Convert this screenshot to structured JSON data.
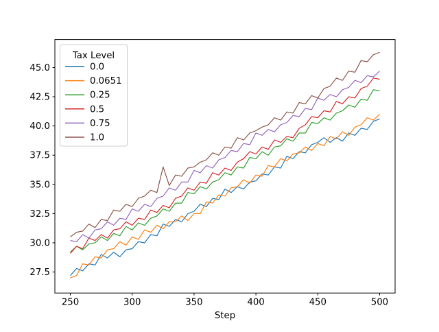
{
  "figure": {
    "background": "#ffffff"
  },
  "chart_data": {
    "type": "line",
    "title": "",
    "xlabel": "Step",
    "ylabel": "",
    "xlim": [
      237.5,
      512.5
    ],
    "ylim": [
      25.7,
      47.4
    ],
    "grid": false,
    "x_ticks": {
      "values": [
        250,
        300,
        350,
        400,
        450,
        500
      ],
      "labels": [
        "250",
        "300",
        "350",
        "400",
        "450",
        "500"
      ]
    },
    "y_ticks": {
      "values": [
        27.5,
        30.0,
        32.5,
        35.0,
        37.5,
        40.0,
        42.5,
        45.0
      ],
      "labels": [
        "27.5",
        "30.0",
        "32.5",
        "35.0",
        "37.5",
        "40.0",
        "42.5",
        "45.0"
      ]
    },
    "legend": {
      "title": "Tax Level",
      "position": "upper-left"
    },
    "x": [
      250,
      255,
      260,
      265,
      270,
      275,
      280,
      285,
      290,
      295,
      300,
      305,
      310,
      315,
      320,
      325,
      330,
      335,
      340,
      345,
      350,
      355,
      360,
      365,
      370,
      375,
      380,
      385,
      390,
      395,
      400,
      405,
      410,
      415,
      420,
      425,
      430,
      435,
      440,
      445,
      450,
      455,
      460,
      465,
      470,
      475,
      480,
      485,
      490,
      495,
      500
    ],
    "series": [
      {
        "name": "0.0",
        "color": "#1f77b4",
        "values": [
          27.2,
          27.8,
          27.6,
          28.2,
          28.1,
          29.0,
          28.7,
          29.2,
          28.8,
          29.4,
          29.5,
          30.1,
          30.0,
          30.7,
          30.6,
          31.6,
          31.4,
          32.0,
          31.8,
          32.5,
          32.7,
          33.3,
          33.1,
          33.8,
          33.7,
          34.6,
          34.3,
          34.8,
          34.6,
          35.2,
          35.3,
          35.9,
          35.8,
          36.5,
          36.4,
          37.4,
          37.2,
          37.8,
          37.7,
          38.4,
          38.6,
          39.0,
          38.6,
          39.0,
          38.7,
          39.4,
          39.2,
          39.8,
          39.7,
          40.4,
          40.6
        ]
      },
      {
        "name": "0.0651",
        "color": "#ff7f0e",
        "values": [
          27.0,
          27.2,
          28.2,
          28.1,
          28.8,
          28.7,
          29.4,
          29.5,
          30.1,
          29.8,
          30.5,
          30.3,
          31.1,
          30.9,
          31.5,
          31.2,
          31.8,
          31.8,
          32.3,
          31.9,
          32.5,
          32.5,
          33.5,
          33.4,
          34.1,
          34.0,
          34.7,
          34.8,
          35.4,
          35.1,
          35.8,
          35.7,
          36.6,
          36.5,
          37.2,
          37.0,
          37.6,
          37.7,
          38.2,
          37.9,
          38.5,
          38.3,
          39.1,
          38.9,
          39.5,
          39.2,
          39.9,
          40.1,
          40.7,
          40.5,
          41.0
        ]
      },
      {
        "name": "0.25",
        "color": "#2ca02c",
        "values": [
          29.2,
          29.7,
          29.4,
          29.9,
          30.0,
          30.5,
          30.2,
          30.8,
          30.6,
          31.4,
          31.1,
          31.7,
          31.5,
          32.1,
          32.3,
          32.9,
          32.7,
          33.4,
          33.4,
          34.3,
          34.2,
          34.8,
          34.6,
          35.2,
          35.4,
          36.0,
          35.8,
          36.5,
          36.4,
          37.3,
          37.2,
          37.8,
          37.5,
          38.2,
          38.3,
          38.9,
          38.7,
          39.4,
          39.4,
          40.3,
          40.2,
          40.7,
          40.5,
          41.1,
          41.3,
          41.8,
          41.6,
          42.3,
          42.2,
          43.1,
          43.0
        ]
      },
      {
        "name": "0.5",
        "color": "#d62728",
        "values": [
          29.1,
          29.7,
          29.5,
          30.4,
          30.2,
          30.7,
          30.4,
          31.1,
          31.2,
          31.8,
          31.5,
          32.1,
          32.0,
          32.8,
          32.6,
          33.2,
          33.0,
          33.8,
          34.0,
          34.7,
          34.5,
          35.2,
          35.1,
          36.0,
          35.8,
          36.4,
          36.2,
          36.9,
          37.2,
          37.8,
          37.6,
          38.2,
          38.0,
          38.8,
          38.6,
          39.1,
          39.0,
          39.8,
          40.1,
          40.8,
          40.7,
          41.3,
          41.2,
          42.1,
          41.9,
          42.5,
          42.4,
          43.2,
          43.4,
          44.1,
          44.0
        ]
      },
      {
        "name": "0.75",
        "color": "#9467bd",
        "values": [
          30.2,
          30.1,
          30.7,
          30.4,
          31.1,
          31.2,
          31.8,
          31.5,
          32.1,
          32.0,
          32.9,
          32.7,
          33.3,
          33.1,
          33.8,
          34.0,
          34.7,
          34.5,
          35.2,
          35.2,
          36.2,
          36.0,
          36.6,
          36.4,
          37.1,
          37.3,
          37.9,
          37.8,
          38.5,
          38.4,
          39.4,
          39.2,
          39.7,
          39.5,
          40.1,
          40.3,
          40.9,
          40.8,
          41.5,
          41.4,
          42.4,
          42.2,
          42.7,
          42.5,
          43.1,
          43.3,
          43.9,
          43.7,
          44.3,
          44.2,
          44.7
        ]
      },
      {
        "name": "1.0",
        "color": "#8c564b",
        "values": [
          30.5,
          30.9,
          31.0,
          31.6,
          31.3,
          32.0,
          31.9,
          32.8,
          32.7,
          33.3,
          33.1,
          33.8,
          34.0,
          34.5,
          34.3,
          36.5,
          34.9,
          35.8,
          35.7,
          36.4,
          36.5,
          36.9,
          37.1,
          37.7,
          37.5,
          38.2,
          38.1,
          39.0,
          38.8,
          39.4,
          39.6,
          39.9,
          40.1,
          40.7,
          40.5,
          41.2,
          41.1,
          42.0,
          41.9,
          42.6,
          42.4,
          43.2,
          43.4,
          44.1,
          43.9,
          44.7,
          44.6,
          45.6,
          45.5,
          46.1,
          46.3
        ]
      }
    ]
  }
}
